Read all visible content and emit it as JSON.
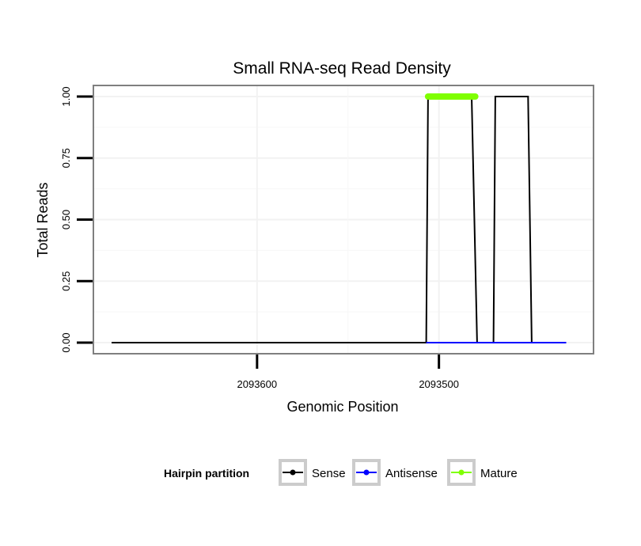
{
  "chart_data": {
    "type": "line",
    "title": "Small RNA-seq Read Density",
    "xlabel": "Genomic Position",
    "ylabel": "Total Reads",
    "x_reversed": true,
    "xlim": [
      2093690,
      2093415
    ],
    "ylim": [
      -0.045,
      1.045
    ],
    "x_ticks": [
      2093600,
      2093500
    ],
    "x_tick_labels": [
      "2093600",
      "2093500"
    ],
    "y_ticks": [
      0,
      0.25,
      0.5,
      0.75,
      1.0
    ],
    "y_tick_labels": [
      "0.00",
      "0.25",
      "0.50",
      "0.75",
      "1.00"
    ],
    "grid": true,
    "legend": {
      "title": "Hairpin partition",
      "placement": "bottom",
      "entries": [
        {
          "label": "Sense",
          "color": "#000000"
        },
        {
          "label": "Antisense",
          "color": "#0000ff"
        },
        {
          "label": "Mature",
          "color": "#7fff00"
        }
      ]
    },
    "series": [
      {
        "name": "Sense",
        "color": "#000000",
        "x": [
          2093680,
          2093507,
          2093506,
          2093482,
          2093479,
          2093470,
          2093469,
          2093451,
          2093449,
          2093430
        ],
        "y": [
          0,
          0,
          1,
          1,
          0,
          0,
          1,
          1,
          0,
          0
        ]
      },
      {
        "name": "Antisense",
        "color": "#0000ff",
        "x": [
          2093507,
          2093430
        ],
        "y": [
          0,
          0
        ]
      },
      {
        "name": "Mature",
        "color": "#7fff00",
        "x": [
          2093506,
          2093480
        ],
        "y": [
          1,
          1
        ]
      }
    ]
  }
}
